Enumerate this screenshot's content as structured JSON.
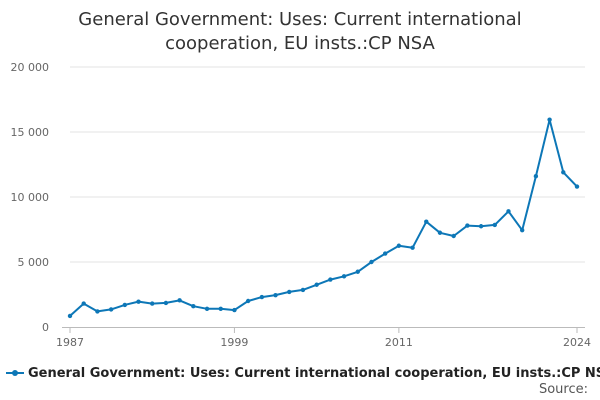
{
  "chart_data": {
    "type": "line",
    "title_lines": [
      "General Government: Uses: Current international",
      "cooperation, EU insts.:CP NSA"
    ],
    "xlabel": "",
    "ylabel": "",
    "x": [
      1987,
      1988,
      1989,
      1990,
      1991,
      1992,
      1993,
      1994,
      1995,
      1996,
      1997,
      1998,
      1999,
      2000,
      2001,
      2002,
      2003,
      2004,
      2005,
      2006,
      2007,
      2008,
      2009,
      2010,
      2011,
      2012,
      2013,
      2014,
      2015,
      2016,
      2017,
      2018,
      2019,
      2020,
      2021,
      2022,
      2023,
      2024
    ],
    "series": [
      {
        "name": "General Government: Uses: Current international cooperation, EU insts.:CP NSA",
        "color": "#0d77b7",
        "values": [
          850,
          1800,
          1200,
          1350,
          1700,
          1950,
          1800,
          1850,
          2050,
          1600,
          1400,
          1400,
          1300,
          2000,
          2300,
          2450,
          2700,
          2850,
          3250,
          3650,
          3900,
          4250,
          5000,
          5650,
          6250,
          6100,
          8100,
          7250,
          7000,
          7800,
          7750,
          7850,
          8900,
          7450,
          11600,
          15950,
          11900,
          10800
        ]
      }
    ],
    "ylim": [
      0,
      20000
    ],
    "yticks": [
      0,
      5000,
      10000,
      15000,
      20000
    ],
    "ytick_labels": [
      "0",
      "5 000",
      "10 000",
      "15 000",
      "20 000"
    ],
    "xticks": [
      1987,
      1999,
      2011,
      2024
    ],
    "xtick_labels": [
      "1987",
      "1999",
      "2011",
      "2024"
    ],
    "grid": true,
    "legend_position": "bottom-left",
    "source_label": "Source:"
  }
}
